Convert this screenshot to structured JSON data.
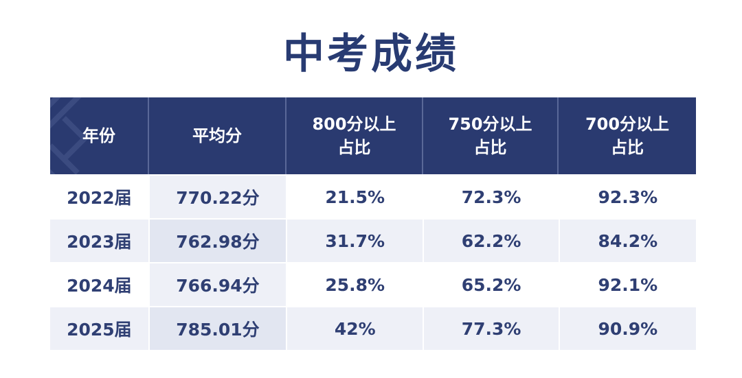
{
  "title": "中考成绩",
  "table": {
    "headers": [
      "年份",
      "平均分",
      "800分以上\n占比",
      "750分以上\n占比",
      "700分以上\n占比"
    ],
    "rows": [
      [
        "2022届",
        "770.22分",
        "21.5%",
        "72.3%",
        "92.3%"
      ],
      [
        "2023届",
        "762.98分",
        "31.7%",
        "62.2%",
        "84.2%"
      ],
      [
        "2024届",
        "766.94分",
        "25.8%",
        "65.2%",
        "92.1%"
      ],
      [
        "2025届",
        "785.01分",
        "42%",
        "77.3%",
        "90.9%"
      ]
    ]
  },
  "colors": {
    "header_bg": "#2a3a70",
    "title": "#283b72",
    "cell_text": "#2f3f73",
    "alt_row": "#eef0f7"
  }
}
